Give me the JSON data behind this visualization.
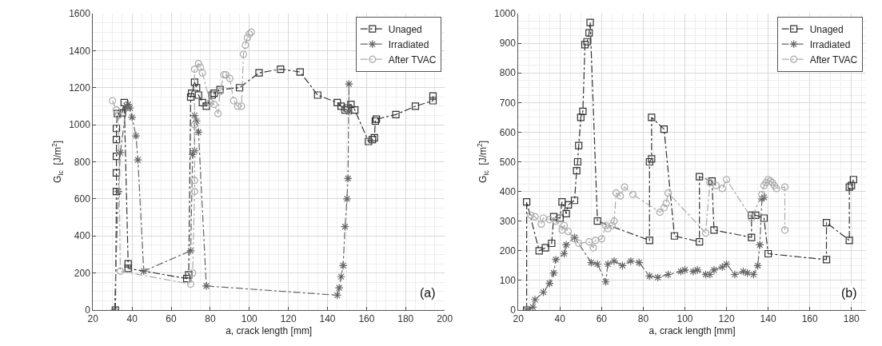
{
  "chart_data": [
    {
      "type": "line",
      "xlabel": "a, crack length [mm]",
      "ylabel": "G$_{Ic}$  [J/m$^{2}$]",
      "xlim": [
        20,
        200
      ],
      "xticks": [
        20,
        40,
        60,
        80,
        100,
        120,
        140,
        160,
        180,
        200
      ],
      "ylim": [
        0,
        1600
      ],
      "yticks": [
        0,
        200,
        400,
        600,
        800,
        1000,
        1200,
        1400,
        1600
      ],
      "grid": true,
      "legend": "top right",
      "line_style": "dashed",
      "annotations": [
        "(a)"
      ],
      "series": [
        {
          "name": "Unaged",
          "color": "#333333",
          "marker": "square",
          "x": [
            31.5,
            32,
            32,
            32,
            32,
            32,
            32.5,
            35,
            36,
            38,
            38,
            68,
            69,
            70,
            70.5,
            72,
            73,
            74,
            76,
            78,
            81,
            82,
            85,
            95,
            105,
            116,
            126,
            135,
            145,
            147,
            149,
            150,
            152,
            154,
            161,
            163,
            164,
            164.5,
            165,
            175,
            185,
            194,
            194
          ],
          "values": [
            0,
            640,
            740,
            830,
            920,
            980,
            1060,
            1065,
            1120,
            250,
            225,
            170,
            190,
            1150,
            1170,
            1230,
            1200,
            1160,
            1120,
            1100,
            1160,
            1170,
            1190,
            1200,
            1280,
            1300,
            1285,
            1160,
            1120,
            1100,
            1080,
            1090,
            1110,
            1080,
            910,
            920,
            930,
            1020,
            1030,
            1055,
            1100,
            1130,
            1155
          ]
        },
        {
          "name": "Irradiated",
          "color": "#666666",
          "marker": "cross",
          "x": [
            31,
            33,
            34,
            37,
            38,
            39,
            40,
            42,
            43,
            46,
            70,
            71,
            72,
            72,
            73,
            74,
            78,
            145,
            146,
            147,
            148,
            149,
            150,
            150.5,
            151,
            151
          ],
          "values": [
            0,
            640,
            850,
            1090,
            1110,
            1090,
            1040,
            940,
            810,
            210,
            320,
            840,
            860,
            1050,
            1020,
            960,
            130,
            80,
            120,
            180,
            240,
            450,
            600,
            710,
            1220,
            1070
          ]
        },
        {
          "name": "After TVAC",
          "color": "#aaaaaa",
          "marker": "circle",
          "x": [
            30,
            32,
            33,
            34,
            70,
            71,
            72,
            72,
            72,
            72,
            74,
            75,
            76,
            80,
            82,
            84,
            85,
            87,
            88,
            90,
            92,
            94,
            96,
            97,
            98,
            99,
            100,
            101
          ],
          "values": [
            1130,
            1080,
            1050,
            210,
            140,
            200,
            640,
            700,
            1000,
            1300,
            1330,
            1310,
            1280,
            1120,
            1110,
            1060,
            1180,
            1270,
            1270,
            1250,
            1130,
            1100,
            1100,
            1380,
            1430,
            1470,
            1490,
            1500
          ]
        }
      ]
    },
    {
      "type": "line",
      "xlabel": "a, crack length [mm]",
      "ylabel": "G$_{Ic}$  [J/m$^{2}$]",
      "xlim": [
        20,
        187
      ],
      "xticks": [
        20,
        40,
        60,
        80,
        100,
        120,
        140,
        160,
        180
      ],
      "ylim": [
        0,
        1000
      ],
      "yticks": [
        0,
        100,
        200,
        300,
        400,
        500,
        600,
        700,
        800,
        900,
        1000
      ],
      "grid": true,
      "legend": "top right",
      "line_style": "dashed",
      "annotations": [
        "(b)"
      ],
      "series": [
        {
          "name": "Unaged",
          "color": "#333333",
          "marker": "square",
          "x": [
            24,
            24,
            30,
            33,
            36,
            37,
            40,
            41,
            43,
            44,
            47,
            48,
            48.5,
            49,
            50,
            51,
            52,
            53,
            54,
            54.5,
            58,
            83,
            83,
            84,
            84,
            90,
            95,
            107,
            107,
            113,
            114,
            132,
            132,
            134,
            138,
            140,
            168,
            168,
            179,
            179,
            180,
            181
          ],
          "values": [
            0,
            365,
            200,
            210,
            225,
            315,
            310,
            365,
            325,
            355,
            370,
            470,
            500,
            555,
            650,
            670,
            895,
            905,
            935,
            970,
            300,
            235,
            500,
            510,
            650,
            610,
            250,
            230,
            450,
            435,
            270,
            245,
            320,
            320,
            310,
            190,
            170,
            295,
            235,
            415,
            420,
            440
          ]
        },
        {
          "name": "Irradiated",
          "color": "#666666",
          "marker": "cross",
          "x": [
            24,
            27,
            28,
            32,
            35,
            37,
            38,
            42,
            43,
            47,
            55,
            58,
            62,
            63,
            66,
            70,
            74,
            78,
            83,
            87,
            92,
            98,
            100,
            104,
            106,
            110,
            112,
            114,
            118,
            120,
            124,
            128,
            130,
            133,
            135,
            136,
            137,
            138
          ],
          "values": [
            0,
            10,
            35,
            60,
            90,
            125,
            170,
            190,
            220,
            245,
            160,
            155,
            95,
            155,
            165,
            150,
            165,
            160,
            115,
            110,
            120,
            130,
            135,
            130,
            135,
            120,
            120,
            135,
            145,
            155,
            120,
            130,
            125,
            120,
            150,
            220,
            375,
            380
          ]
        },
        {
          "name": "After TVAC",
          "color": "#aaaaaa",
          "marker": "circle",
          "x": [
            26,
            28,
            31,
            32,
            35,
            38,
            41,
            42,
            44,
            47,
            49,
            54,
            56,
            57,
            60,
            62,
            63,
            65,
            66,
            67,
            69,
            71,
            75,
            88,
            90,
            91,
            92,
            110,
            112,
            115,
            118,
            120,
            132,
            137,
            138,
            139,
            140,
            141,
            142,
            143,
            144,
            148,
            148
          ],
          "values": [
            320,
            315,
            290,
            310,
            305,
            300,
            270,
            285,
            265,
            240,
            225,
            230,
            210,
            235,
            240,
            285,
            275,
            285,
            300,
            395,
            385,
            415,
            390,
            330,
            345,
            360,
            395,
            260,
            430,
            420,
            410,
            440,
            310,
            390,
            420,
            430,
            440,
            435,
            430,
            420,
            410,
            415,
            270
          ]
        }
      ]
    }
  ]
}
